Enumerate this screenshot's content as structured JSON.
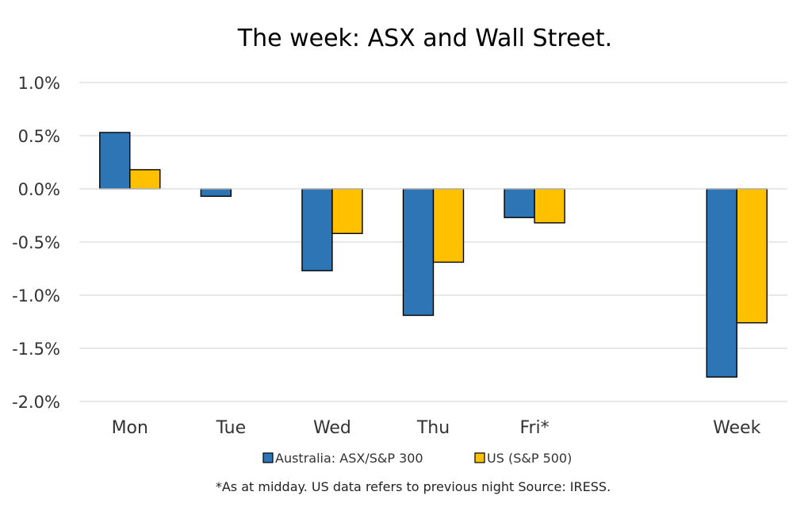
{
  "chart_data": {
    "type": "bar",
    "title": "The week:  ASX and Wall Street.",
    "categories": [
      "Mon",
      "Tue",
      "Wed",
      "Thu",
      "Fri*",
      "",
      "Week"
    ],
    "series": [
      {
        "name": "Australia: ASX/S&P 300",
        "color": "#2E75B6",
        "values": [
          0.53,
          -0.07,
          -0.77,
          -1.19,
          -0.27,
          null,
          -1.77
        ]
      },
      {
        "name": "US (S&P 500)",
        "color": "#FFC000",
        "values": [
          0.18,
          null,
          -0.42,
          -0.69,
          -0.32,
          null,
          -1.26
        ]
      }
    ],
    "ylim": [
      -2.0,
      1.0
    ],
    "yticks": [
      "1.0%",
      "0.5%",
      "0.0%",
      "-0.5%",
      "-1.0%",
      "-1.5%",
      "-2.0%"
    ],
    "ytick_values": [
      1.0,
      0.5,
      0.0,
      -0.5,
      -1.0,
      -1.5,
      -2.0
    ],
    "xlabel": "",
    "ylabel": "",
    "grid": true,
    "legend_position": "bottom",
    "footnote": "*As at midday. US data refers to previous night  Source:  IRESS."
  }
}
